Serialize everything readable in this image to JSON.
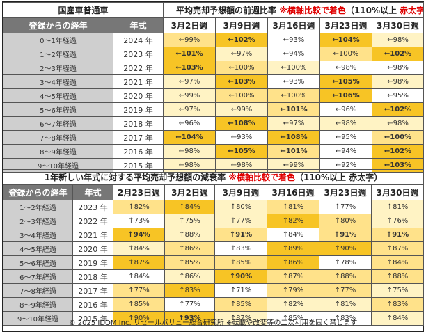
{
  "table1": {
    "corner_title": "国産車普通車",
    "title_text": "平均売却予想額の前週比率",
    "title_note": "※横軸比較で着色",
    "title_paren_open": "（110%以上",
    "title_bold_red": "赤太字",
    "title_paren_close": "）",
    "col_years_label": "登録からの経年",
    "col_model_label": "年式",
    "dates": [
      "3月2日週",
      "3月9日週",
      "3月16日週",
      "3月23日週",
      "3月30日週"
    ],
    "rows": [
      {
        "label": "0～1年経過",
        "year": "2024 年",
        "cells": [
          {
            "t": "←99%",
            "c": "c2"
          },
          {
            "t": "←102%",
            "c": "c3",
            "b": true
          },
          {
            "t": "←93%",
            "c": "c0"
          },
          {
            "t": "←104%",
            "c": "c3",
            "b": true
          },
          {
            "t": "←98%",
            "c": "c1"
          }
        ]
      },
      {
        "label": "1～2年経過",
        "year": "2023 年",
        "cells": [
          {
            "t": "←101%",
            "c": "c3",
            "b": true
          },
          {
            "t": "←97%",
            "c": "c1"
          },
          {
            "t": "←94%",
            "c": "c0"
          },
          {
            "t": "←100%",
            "c": "c2"
          },
          {
            "t": "←102%",
            "c": "c3",
            "b": true
          }
        ]
      },
      {
        "label": "2～3年経過",
        "year": "2022 年",
        "cells": [
          {
            "t": "←103%",
            "c": "c3",
            "b": true
          },
          {
            "t": "←100%",
            "c": "c2"
          },
          {
            "t": "←100%",
            "c": "c1"
          },
          {
            "t": "←98%",
            "c": "c0"
          },
          {
            "t": "←98%",
            "c": "c0"
          }
        ]
      },
      {
        "label": "3～4年経過",
        "year": "2021 年",
        "cells": [
          {
            "t": "←97%",
            "c": "c1"
          },
          {
            "t": "←103%",
            "c": "c3",
            "b": true
          },
          {
            "t": "←93%",
            "c": "c0"
          },
          {
            "t": "←105%",
            "c": "c3",
            "b": true
          },
          {
            "t": "←98%",
            "c": "c1"
          }
        ]
      },
      {
        "label": "4～5年経過",
        "year": "2020 年",
        "cells": [
          {
            "t": "←99%",
            "c": "c1"
          },
          {
            "t": "←100%",
            "c": "c2"
          },
          {
            "t": "←100%",
            "c": "c2"
          },
          {
            "t": "←106%",
            "c": "c3",
            "b": true
          },
          {
            "t": "←95%",
            "c": "c0"
          }
        ]
      },
      {
        "label": "5～6年経過",
        "year": "2019 年",
        "cells": [
          {
            "t": "←97%",
            "c": "c1"
          },
          {
            "t": "←99%",
            "c": "c1"
          },
          {
            "t": "←101%",
            "c": "c2",
            "b": true
          },
          {
            "t": "←96%",
            "c": "c0"
          },
          {
            "t": "←102%",
            "c": "c3",
            "b": true
          }
        ]
      },
      {
        "label": "6～7年経過",
        "year": "2018 年",
        "cells": [
          {
            "t": "←96%",
            "c": "c0"
          },
          {
            "t": "←108%",
            "c": "c3",
            "b": true
          },
          {
            "t": "←97%",
            "c": "c1"
          },
          {
            "t": "←98%",
            "c": "c1"
          },
          {
            "t": "←98%",
            "c": "c1"
          }
        ]
      },
      {
        "label": "7～8年経過",
        "year": "2017 年",
        "cells": [
          {
            "t": "←104%",
            "c": "c3",
            "b": true
          },
          {
            "t": "←93%",
            "c": "c0"
          },
          {
            "t": "←108%",
            "c": "c3",
            "b": true
          },
          {
            "t": "←95%",
            "c": "c0"
          },
          {
            "t": "←100%",
            "c": "c2",
            "b": true
          }
        ]
      },
      {
        "label": "8～9年経過",
        "year": "2016 年",
        "cells": [
          {
            "t": "←98%",
            "c": "c1"
          },
          {
            "t": "←105%",
            "c": "c3",
            "b": true
          },
          {
            "t": "←101%",
            "c": "c2",
            "b": true
          },
          {
            "t": "←94%",
            "c": "c0"
          },
          {
            "t": "←102%",
            "c": "c3",
            "b": true
          }
        ]
      },
      {
        "label": "9～10年経過",
        "year": "2015 年",
        "cells": [
          {
            "t": "←98%",
            "c": "c1"
          },
          {
            "t": "←98%",
            "c": "c1"
          },
          {
            "t": "←99%",
            "c": "c1"
          },
          {
            "t": "←92%",
            "c": "c0"
          },
          {
            "t": "←103%",
            "c": "c3",
            "b": true
          }
        ]
      }
    ]
  },
  "table2": {
    "title_text": "1年新しい年式に対する平均売却予想額の減衰率",
    "title_note": "※横軸比較で着色",
    "title_paren_open": "（110%以上",
    "title_bold_red": "赤太字",
    "title_paren_close": "）",
    "col_years_label": "登録からの経年",
    "col_model_label": "年式",
    "dates": [
      "2月23日週",
      "3月2日週",
      "3月9日週",
      "3月16日週",
      "3月23日週",
      "3月30日週"
    ],
    "rows": [
      {
        "label": "1～2年経過",
        "year": "2023 年",
        "cells": [
          {
            "t": "↑82%",
            "c": "c2",
            "l": true
          },
          {
            "t": "↑84%",
            "c": "c3",
            "l": true
          },
          {
            "t": "↑80%",
            "c": "c1",
            "l": true
          },
          {
            "t": "↑81%",
            "c": "c2",
            "l": true
          },
          {
            "t": "↑77%",
            "c": "c0",
            "l": true
          },
          {
            "t": "↑81%",
            "c": "c1",
            "l": true
          }
        ]
      },
      {
        "label": "2～3年経過",
        "year": "2022 年",
        "cells": [
          {
            "t": "↑73%",
            "c": "c0",
            "l": true
          },
          {
            "t": "↑75%",
            "c": "c1",
            "l": true
          },
          {
            "t": "↑77%",
            "c": "c1",
            "l": true
          },
          {
            "t": "↑82%",
            "c": "c3",
            "l": true
          },
          {
            "t": "↑80%",
            "c": "c2",
            "l": true
          },
          {
            "t": "↑76%",
            "c": "c1",
            "l": true
          }
        ]
      },
      {
        "label": "3～4年経過",
        "year": "2021 年",
        "cells": [
          {
            "t": "↑94%",
            "c": "c3",
            "b": true
          },
          {
            "t": "↑88%",
            "c": "c1",
            "l": true
          },
          {
            "t": "↑91%",
            "c": "c2",
            "b": true
          },
          {
            "t": "↑84%",
            "c": "c0",
            "l": true
          },
          {
            "t": "↑91%",
            "c": "c2",
            "b": true
          },
          {
            "t": "↑91%",
            "c": "c2",
            "b": true
          }
        ]
      },
      {
        "label": "4～5年経過",
        "year": "2020 年",
        "cells": [
          {
            "t": "↑84%",
            "c": "c1",
            "l": true
          },
          {
            "t": "↑86%",
            "c": "c2",
            "l": true
          },
          {
            "t": "↑83%",
            "c": "c0",
            "l": true
          },
          {
            "t": "↑89%",
            "c": "c3",
            "l": true
          },
          {
            "t": "↑90%",
            "c": "c3",
            "l": true
          },
          {
            "t": "↑87%",
            "c": "c2",
            "l": true
          }
        ]
      },
      {
        "label": "5～6年経過",
        "year": "2019 年",
        "cells": [
          {
            "t": "↑87%",
            "c": "c3",
            "l": true
          },
          {
            "t": "↑85%",
            "c": "c2",
            "l": true
          },
          {
            "t": "↑85%",
            "c": "c2",
            "l": true
          },
          {
            "t": "↑86%",
            "c": "c3",
            "l": true
          },
          {
            "t": "↑78%",
            "c": "c0",
            "l": true
          },
          {
            "t": "↑84%",
            "c": "c2",
            "l": true
          }
        ]
      },
      {
        "label": "6～7年経過",
        "year": "2018 年",
        "cells": [
          {
            "t": "↑84%",
            "c": "c0",
            "l": true
          },
          {
            "t": "↑86%",
            "c": "c1",
            "l": true
          },
          {
            "t": "↑90%",
            "c": "c3",
            "b": true
          },
          {
            "t": "↑87%",
            "c": "c2",
            "l": true
          },
          {
            "t": "↑88%",
            "c": "c2",
            "l": true
          },
          {
            "t": "↑88%",
            "c": "c2",
            "l": true
          }
        ]
      },
      {
        "label": "7～8年経過",
        "year": "2017 年",
        "cells": [
          {
            "t": "↑77%",
            "c": "c2",
            "l": true
          },
          {
            "t": "↑83%",
            "c": "c3",
            "l": true
          },
          {
            "t": "↑71%",
            "c": "c0",
            "l": true
          },
          {
            "t": "↑79%",
            "c": "c2",
            "l": true
          },
          {
            "t": "↑77%",
            "c": "c2",
            "l": true
          },
          {
            "t": "↑75%",
            "c": "c1",
            "l": true
          }
        ]
      },
      {
        "label": "8～9年経過",
        "year": "2016 年",
        "cells": [
          {
            "t": "↑85%",
            "c": "c2",
            "l": true
          },
          {
            "t": "↑77%",
            "c": "c0",
            "l": true
          },
          {
            "t": "↑85%",
            "c": "c2",
            "l": true
          },
          {
            "t": "↑82%",
            "c": "c1",
            "l": true
          },
          {
            "t": "↑81%",
            "c": "c1",
            "l": true
          },
          {
            "t": "↑83%",
            "c": "c2",
            "l": true
          }
        ]
      },
      {
        "label": "9～10年経過",
        "year": "2015 年",
        "cells": [
          {
            "t": "↑90%",
            "c": "c3",
            "l": true
          },
          {
            "t": "↑93%",
            "c": "c3",
            "b": true
          },
          {
            "t": "↑87%",
            "c": "c1",
            "l": true
          },
          {
            "t": "↑85%",
            "c": "c0",
            "l": true
          },
          {
            "t": "↑83%",
            "c": "c0",
            "l": true
          },
          {
            "t": "↑84%",
            "c": "c1",
            "l": true
          }
        ]
      }
    ]
  },
  "footer": "© 2025 IDOM Inc. リセールバリュー総合研究所 ※転載や改変等の二次利用を固く禁じます",
  "colors": {
    "lightest": "#ffffff",
    "light": "#fff3c4",
    "mid": "#ffe28a",
    "strong": "#f7c425",
    "header_gray": "#777777",
    "label_gray": "#cfcfcf",
    "note_red": "#e00000"
  }
}
